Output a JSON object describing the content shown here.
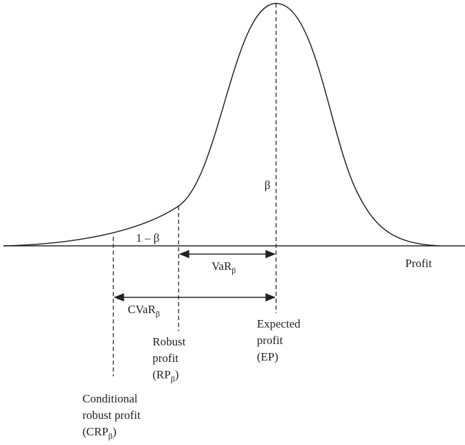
{
  "labels": {
    "beta": "β",
    "one_minus_beta": "1 – β",
    "profit": "Profit",
    "var": {
      "text": "VaR",
      "sub": "β"
    },
    "cvar": {
      "text": "CVaR",
      "sub": "β"
    },
    "expected": {
      "line1": "Expected",
      "line2": "profit",
      "line3": "(EP)"
    },
    "robust": {
      "line1": "Robust",
      "line2": "profit",
      "line3_open": "(RP",
      "sub": "β",
      "line3_close": ")"
    },
    "conditional": {
      "line1": "Conditional",
      "line2": "robust profit",
      "line3_open": "(CRP",
      "sub": "β",
      "line3_close": ")"
    }
  }
}
